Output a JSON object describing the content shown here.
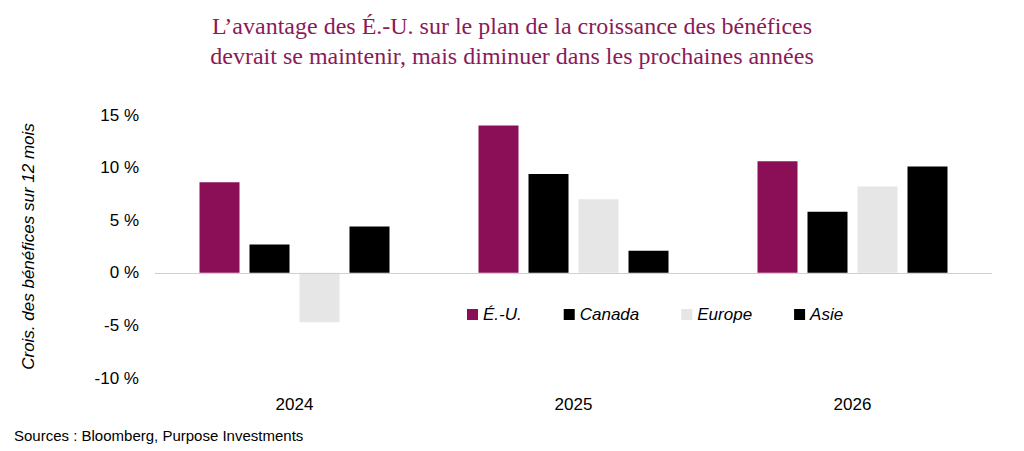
{
  "chart_data": {
    "type": "bar",
    "title": "L’avantage des É.-U. sur le plan de la croissance des bénéfices\ndevrait se maintenir, mais diminuer dans les prochaines années",
    "y_label": "Crois. des bénéfices sur 12 mois",
    "source": "Sources : Bloomberg, Purpose Investments",
    "categories": [
      "2024",
      "2025",
      "2026"
    ],
    "series": [
      {
        "name": "É.-U.",
        "color": "#8b0f56",
        "values": [
          8.6,
          14.0,
          10.6
        ]
      },
      {
        "name": "Canada",
        "color": "#000000",
        "values": [
          2.7,
          9.4,
          5.8
        ]
      },
      {
        "name": "Europe",
        "color": "#e6e6e6",
        "values": [
          -4.7,
          7.0,
          8.2
        ]
      },
      {
        "name": "Asie",
        "color": "#000000",
        "values": [
          4.4,
          2.1,
          10.1
        ]
      }
    ],
    "ylim": [
      -10,
      15
    ],
    "yticks": [
      {
        "value": -10,
        "label": "-10 %"
      },
      {
        "value": -5,
        "label": "-5 %"
      },
      {
        "value": 0,
        "label": "0 %"
      },
      {
        "value": 5,
        "label": "5 %"
      },
      {
        "value": 10,
        "label": "10 %"
      },
      {
        "value": 15,
        "label": "15 %"
      }
    ],
    "grid": false,
    "legend": "center"
  }
}
